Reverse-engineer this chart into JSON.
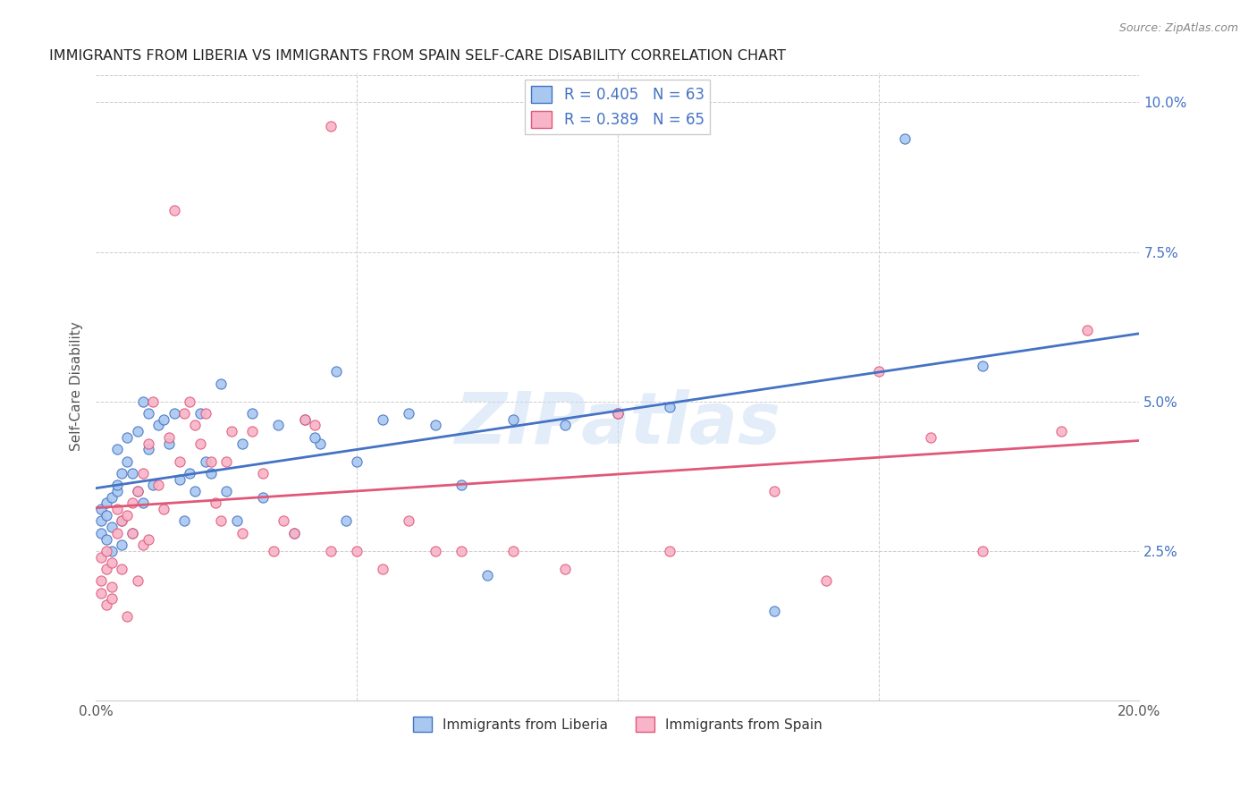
{
  "title": "IMMIGRANTS FROM LIBERIA VS IMMIGRANTS FROM SPAIN SELF-CARE DISABILITY CORRELATION CHART",
  "source": "Source: ZipAtlas.com",
  "ylabel": "Self-Care Disability",
  "xlim": [
    0.0,
    0.2
  ],
  "ylim": [
    0.0,
    0.105
  ],
  "color_liberia": "#a8c8f0",
  "color_spain": "#f8b4c8",
  "line_color_liberia": "#4472c4",
  "line_color_spain": "#e05878",
  "R_liberia": 0.405,
  "N_liberia": 63,
  "R_spain": 0.389,
  "N_spain": 65,
  "liberia_x": [
    0.001,
    0.001,
    0.001,
    0.002,
    0.002,
    0.002,
    0.003,
    0.003,
    0.003,
    0.004,
    0.004,
    0.004,
    0.005,
    0.005,
    0.005,
    0.006,
    0.006,
    0.007,
    0.007,
    0.008,
    0.008,
    0.009,
    0.009,
    0.01,
    0.01,
    0.011,
    0.012,
    0.013,
    0.014,
    0.015,
    0.016,
    0.017,
    0.018,
    0.019,
    0.02,
    0.021,
    0.022,
    0.024,
    0.025,
    0.027,
    0.028,
    0.03,
    0.032,
    0.035,
    0.038,
    0.04,
    0.043,
    0.046,
    0.05,
    0.055,
    0.06,
    0.065,
    0.07,
    0.08,
    0.09,
    0.1,
    0.11,
    0.13,
    0.155,
    0.17,
    0.042,
    0.048,
    0.075
  ],
  "liberia_y": [
    0.03,
    0.032,
    0.028,
    0.031,
    0.027,
    0.033,
    0.029,
    0.025,
    0.034,
    0.035,
    0.042,
    0.036,
    0.038,
    0.026,
    0.03,
    0.04,
    0.044,
    0.038,
    0.028,
    0.045,
    0.035,
    0.05,
    0.033,
    0.048,
    0.042,
    0.036,
    0.046,
    0.047,
    0.043,
    0.048,
    0.037,
    0.03,
    0.038,
    0.035,
    0.048,
    0.04,
    0.038,
    0.053,
    0.035,
    0.03,
    0.043,
    0.048,
    0.034,
    0.046,
    0.028,
    0.047,
    0.043,
    0.055,
    0.04,
    0.047,
    0.048,
    0.046,
    0.036,
    0.047,
    0.046,
    0.048,
    0.049,
    0.015,
    0.094,
    0.056,
    0.044,
    0.03,
    0.021
  ],
  "spain_x": [
    0.001,
    0.001,
    0.001,
    0.002,
    0.002,
    0.002,
    0.003,
    0.003,
    0.003,
    0.004,
    0.004,
    0.005,
    0.005,
    0.006,
    0.006,
    0.007,
    0.007,
    0.008,
    0.008,
    0.009,
    0.009,
    0.01,
    0.01,
    0.011,
    0.012,
    0.013,
    0.014,
    0.015,
    0.016,
    0.017,
    0.018,
    0.019,
    0.02,
    0.021,
    0.022,
    0.023,
    0.024,
    0.025,
    0.026,
    0.028,
    0.03,
    0.032,
    0.034,
    0.036,
    0.038,
    0.04,
    0.042,
    0.045,
    0.045,
    0.05,
    0.055,
    0.06,
    0.065,
    0.07,
    0.08,
    0.09,
    0.1,
    0.11,
    0.13,
    0.14,
    0.15,
    0.16,
    0.17,
    0.185,
    0.19
  ],
  "spain_y": [
    0.02,
    0.018,
    0.024,
    0.022,
    0.016,
    0.025,
    0.019,
    0.023,
    0.017,
    0.028,
    0.032,
    0.03,
    0.022,
    0.031,
    0.014,
    0.033,
    0.028,
    0.035,
    0.02,
    0.038,
    0.026,
    0.043,
    0.027,
    0.05,
    0.036,
    0.032,
    0.044,
    0.082,
    0.04,
    0.048,
    0.05,
    0.046,
    0.043,
    0.048,
    0.04,
    0.033,
    0.03,
    0.04,
    0.045,
    0.028,
    0.045,
    0.038,
    0.025,
    0.03,
    0.028,
    0.047,
    0.046,
    0.025,
    0.096,
    0.025,
    0.022,
    0.03,
    0.025,
    0.025,
    0.025,
    0.022,
    0.048,
    0.025,
    0.035,
    0.02,
    0.055,
    0.044,
    0.025,
    0.045,
    0.062
  ]
}
